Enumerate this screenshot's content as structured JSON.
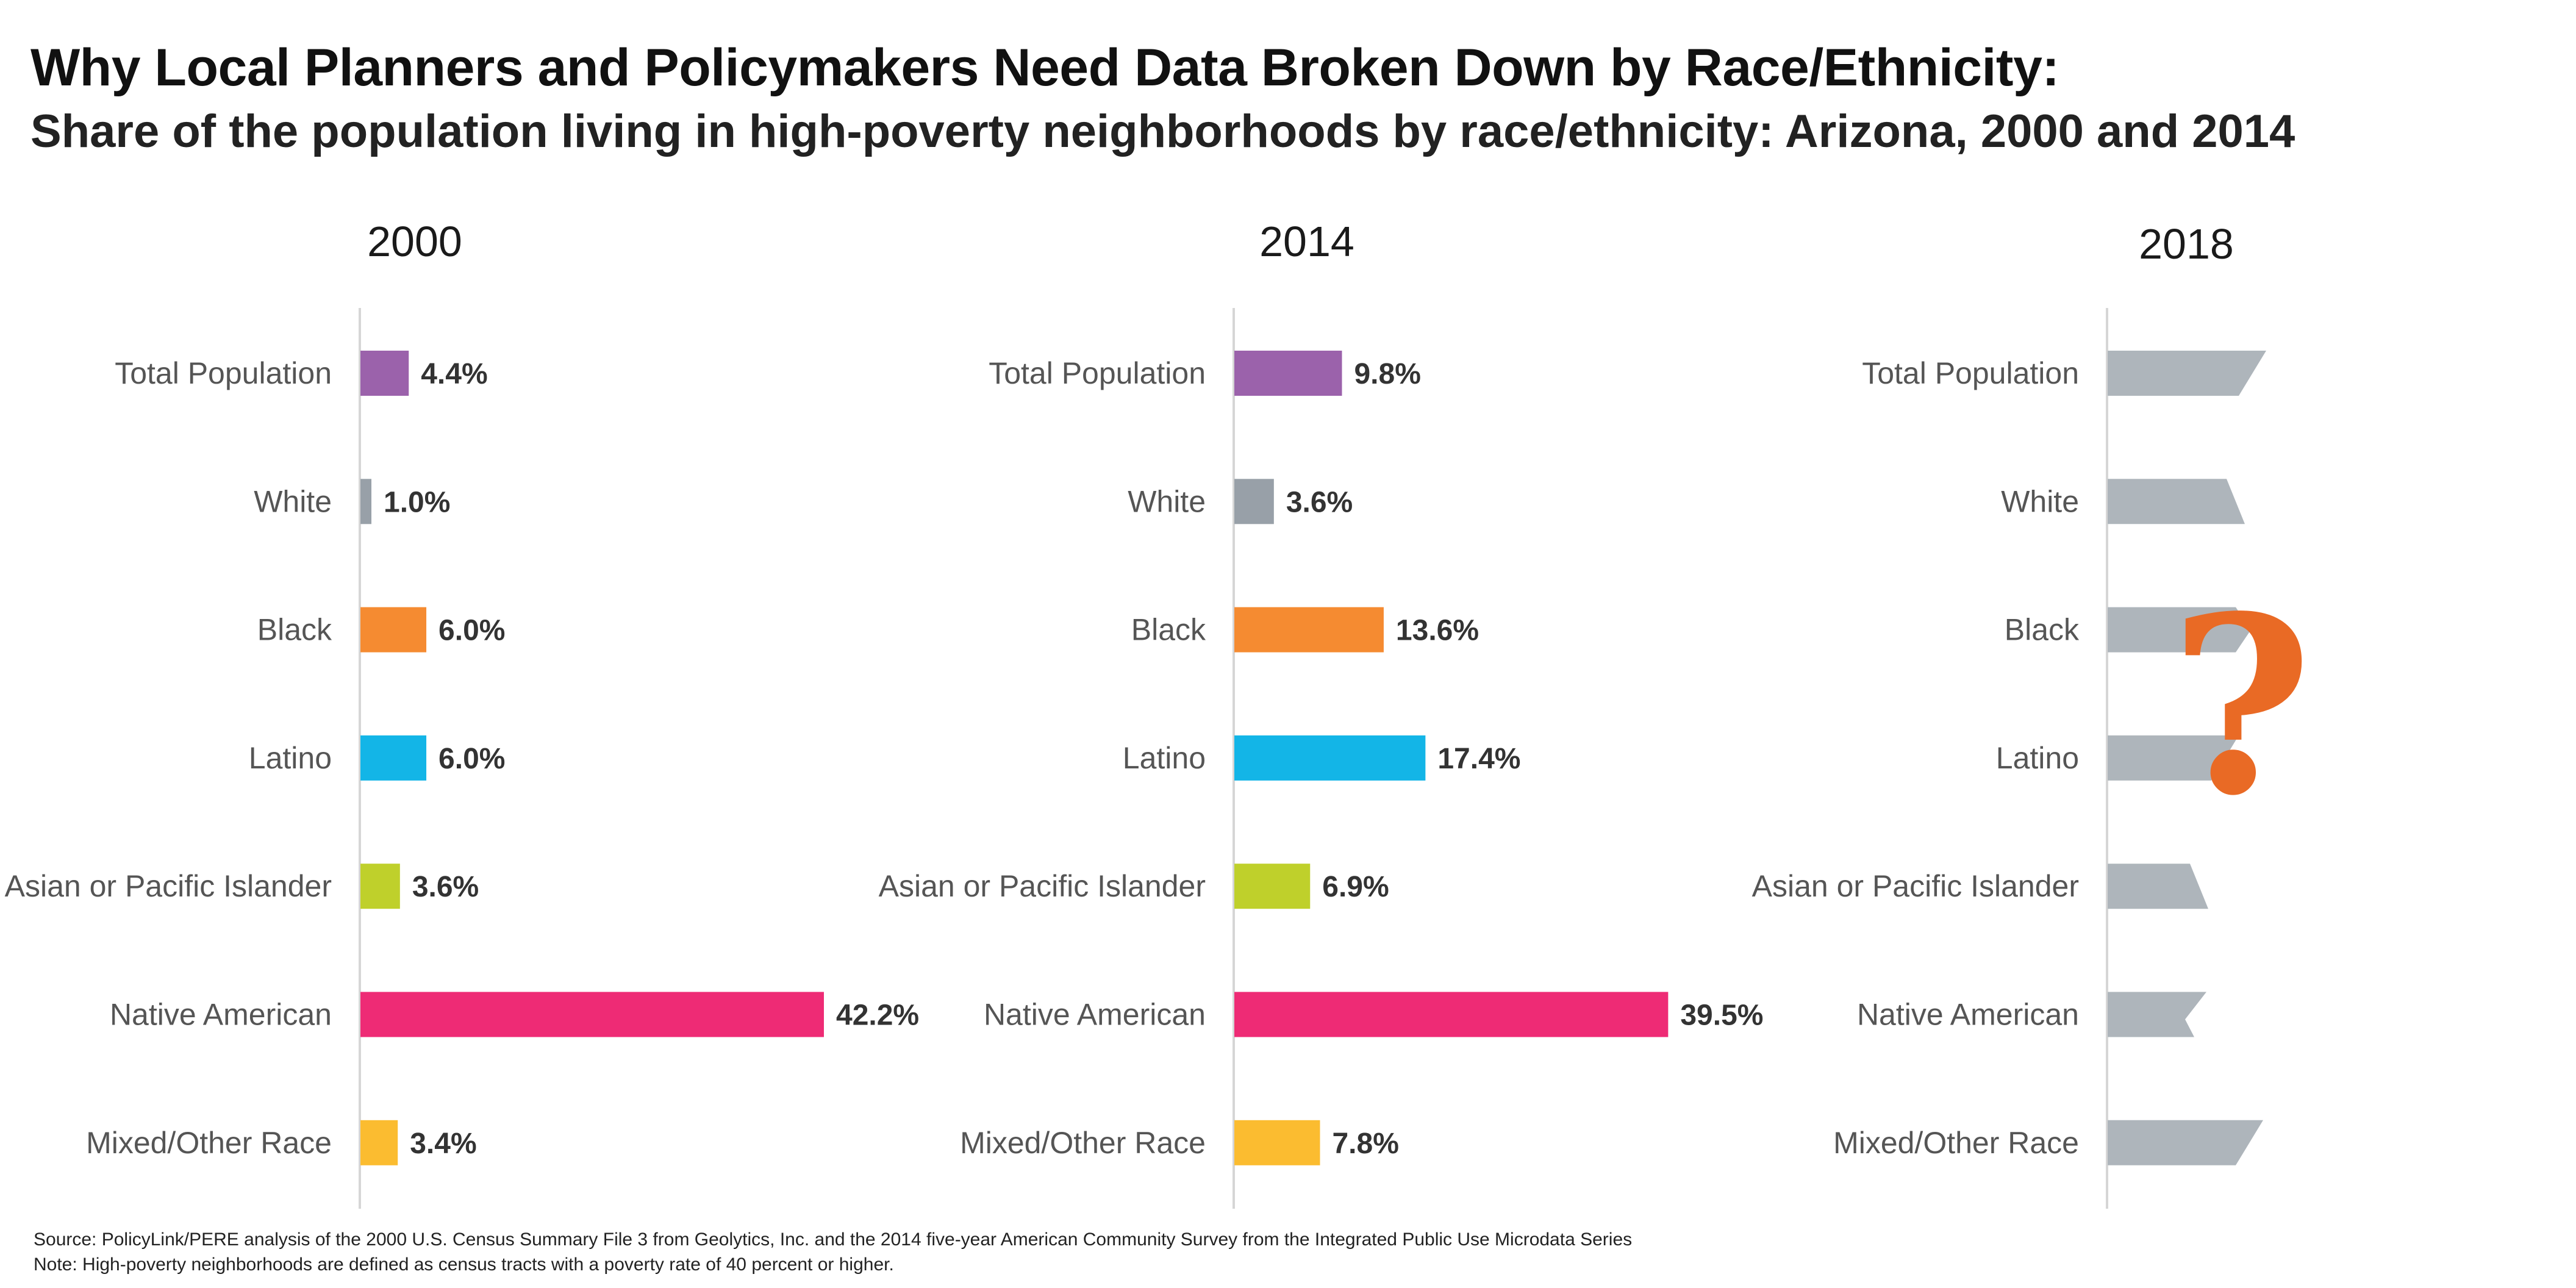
{
  "title": "Why Local Planners and Policymakers Need Data Broken Down by Race/Ethnicity:",
  "subtitle": "Share of the population living in high-poverty neighborhoods by race/ethnicity: Arizona, 2000 and 2014",
  "colors": {
    "Total Population": "#9b62ab",
    "White": "#98a0a8",
    "Black": "#f58b31",
    "Latino": "#13b5e7",
    "Asian or Pacific Islander": "#bfd02b",
    "Native American": "#ee2b75",
    "Mixed/Other Race": "#fbbc30",
    "unknown": "#aeb5bb",
    "question_mark": "#e96a25",
    "axis": "#d6d6d6"
  },
  "chart_data": {
    "type": "bar",
    "orientation": "horizontal",
    "categories": [
      "Total Population",
      "White",
      "Black",
      "Latino",
      "Asian or Pacific Islander",
      "Native American",
      "Mixed/Other Race"
    ],
    "panels": [
      {
        "title": "2000",
        "values": [
          4.4,
          1.0,
          6.0,
          6.0,
          3.6,
          42.2,
          3.4
        ],
        "labels": [
          "4.4%",
          "1.0%",
          "6.0%",
          "6.0%",
          "3.6%",
          "42.2%",
          "3.4%"
        ]
      },
      {
        "title": "2014",
        "values": [
          9.8,
          3.6,
          13.6,
          17.4,
          6.9,
          39.5,
          7.8
        ],
        "labels": [
          "9.8%",
          "3.6%",
          "13.6%",
          "17.4%",
          "6.9%",
          "39.5%",
          "7.8%"
        ]
      },
      {
        "title": "2018",
        "values": null,
        "labels": null,
        "annotation": "?",
        "bar_style": "torn"
      }
    ],
    "xlim": [
      0,
      42.2
    ],
    "grid": false,
    "legend": "none"
  },
  "footer": {
    "source": "Source: PolicyLink/PERE analysis of the 2000 U.S. Census Summary File 3 from Geolytics, Inc. and the 2014 five-year American Community Survey from the Integrated Public Use Microdata Series",
    "note": "Note: High-poverty neighborhoods are defined as census tracts with a poverty rate of 40 percent or higher."
  }
}
